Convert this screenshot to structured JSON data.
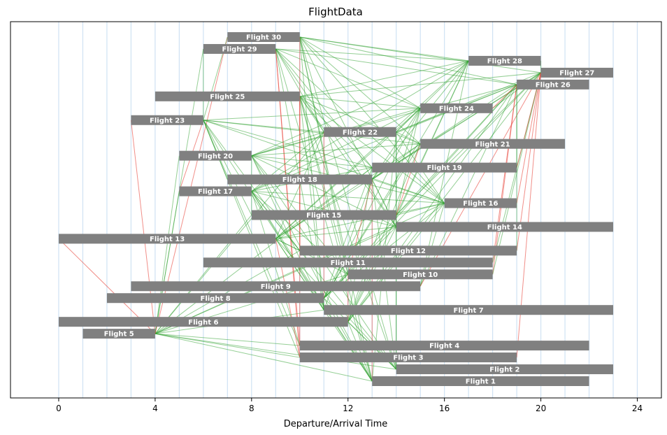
{
  "chart_data": {
    "type": "gantt-network",
    "title": "FlightData",
    "xlabel": "Departure/Arrival Time",
    "xlim": [
      -2,
      25
    ],
    "xticks": [
      0,
      4,
      8,
      12,
      16,
      20,
      24
    ],
    "vertical_gridlines": [
      0,
      1,
      2,
      3,
      4,
      5,
      6,
      7,
      8,
      9,
      10,
      11,
      12,
      13,
      14,
      15,
      16,
      17,
      18,
      19,
      20,
      21,
      22,
      23,
      24
    ],
    "colors": {
      "bar": "#808080",
      "grid": "#cfe2f3",
      "connection_ok": "#2ca02c",
      "connection_bad": "#e8443a"
    },
    "flights": [
      {
        "id": 1,
        "label": "Flight 1",
        "dep": 13,
        "arr": 22
      },
      {
        "id": 2,
        "label": "Flight 2",
        "dep": 14,
        "arr": 23
      },
      {
        "id": 3,
        "label": "Flight 3",
        "dep": 10,
        "arr": 19
      },
      {
        "id": 4,
        "label": "Flight 4",
        "dep": 10,
        "arr": 22
      },
      {
        "id": 5,
        "label": "Flight 5",
        "dep": 1,
        "arr": 4
      },
      {
        "id": 6,
        "label": "Flight 6",
        "dep": 0,
        "arr": 12
      },
      {
        "id": 7,
        "label": "Flight 7",
        "dep": 11,
        "arr": 23
      },
      {
        "id": 8,
        "label": "Flight 8",
        "dep": 2,
        "arr": 11
      },
      {
        "id": 9,
        "label": "Flight 9",
        "dep": 3,
        "arr": 15
      },
      {
        "id": 10,
        "label": "Flight 10",
        "dep": 12,
        "arr": 18
      },
      {
        "id": 11,
        "label": "Flight 11",
        "dep": 6,
        "arr": 18
      },
      {
        "id": 12,
        "label": "Flight 12",
        "dep": 10,
        "arr": 19
      },
      {
        "id": 13,
        "label": "Flight 13",
        "dep": 0,
        "arr": 9
      },
      {
        "id": 14,
        "label": "Flight 14",
        "dep": 14,
        "arr": 23
      },
      {
        "id": 15,
        "label": "Flight 15",
        "dep": 8,
        "arr": 14
      },
      {
        "id": 16,
        "label": "Flight 16",
        "dep": 16,
        "arr": 19
      },
      {
        "id": 17,
        "label": "Flight 17",
        "dep": 5,
        "arr": 8
      },
      {
        "id": 18,
        "label": "Flight 18",
        "dep": 7,
        "arr": 13
      },
      {
        "id": 19,
        "label": "Flight 19",
        "dep": 13,
        "arr": 19
      },
      {
        "id": 20,
        "label": "Flight 20",
        "dep": 5,
        "arr": 8
      },
      {
        "id": 21,
        "label": "Flight 21",
        "dep": 15,
        "arr": 21
      },
      {
        "id": 22,
        "label": "Flight 22",
        "dep": 11,
        "arr": 14
      },
      {
        "id": 23,
        "label": "Flight 23",
        "dep": 3,
        "arr": 6
      },
      {
        "id": 24,
        "label": "Flight 24",
        "dep": 15,
        "arr": 18
      },
      {
        "id": 25,
        "label": "Flight 25",
        "dep": 4,
        "arr": 10
      },
      {
        "id": 26,
        "label": "Flight 26",
        "dep": 19,
        "arr": 22
      },
      {
        "id": 27,
        "label": "Flight 27",
        "dep": 20,
        "arr": 23
      },
      {
        "id": 28,
        "label": "Flight 28",
        "dep": 17,
        "arr": 20
      },
      {
        "id": 29,
        "label": "Flight 29",
        "dep": 6,
        "arr": 9
      },
      {
        "id": 30,
        "label": "Flight 30",
        "dep": 7,
        "arr": 10
      }
    ],
    "connections": [
      {
        "from": 5,
        "to": 1,
        "ok": true
      },
      {
        "from": 5,
        "to": 2,
        "ok": true
      },
      {
        "from": 5,
        "to": 3,
        "ok": true
      },
      {
        "from": 5,
        "to": 4,
        "ok": true
      },
      {
        "from": 5,
        "to": 7,
        "ok": true
      },
      {
        "from": 5,
        "to": 10,
        "ok": true
      },
      {
        "from": 5,
        "to": 12,
        "ok": true
      },
      {
        "from": 5,
        "to": 14,
        "ok": true
      },
      {
        "from": 5,
        "to": 15,
        "ok": true
      },
      {
        "from": 5,
        "to": 16,
        "ok": true
      },
      {
        "from": 5,
        "to": 17,
        "ok": true
      },
      {
        "from": 5,
        "to": 19,
        "ok": true
      },
      {
        "from": 5,
        "to": 20,
        "ok": true
      },
      {
        "from": 5,
        "to": 22,
        "ok": true
      },
      {
        "from": 5,
        "to": 29,
        "ok": true
      },
      {
        "from": 5,
        "to": 23,
        "ok": false
      },
      {
        "from": 5,
        "to": 30,
        "ok": false
      },
      {
        "from": 5,
        "to": 13,
        "ok": false
      },
      {
        "from": 23,
        "to": 17,
        "ok": false
      },
      {
        "from": 23,
        "to": 29,
        "ok": true
      },
      {
        "from": 23,
        "to": 30,
        "ok": true
      },
      {
        "from": 23,
        "to": 18,
        "ok": true
      },
      {
        "from": 23,
        "to": 15,
        "ok": true
      },
      {
        "from": 23,
        "to": 22,
        "ok": true
      },
      {
        "from": 23,
        "to": 24,
        "ok": true
      },
      {
        "from": 23,
        "to": 21,
        "ok": true
      },
      {
        "from": 23,
        "to": 19,
        "ok": true
      },
      {
        "from": 23,
        "to": 16,
        "ok": true
      },
      {
        "from": 23,
        "to": 12,
        "ok": true
      },
      {
        "from": 23,
        "to": 4,
        "ok": true
      },
      {
        "from": 23,
        "to": 3,
        "ok": true
      },
      {
        "from": 23,
        "to": 1,
        "ok": true
      },
      {
        "from": 29,
        "to": 3,
        "ok": false
      },
      {
        "from": 29,
        "to": 4,
        "ok": false
      },
      {
        "from": 29,
        "to": 28,
        "ok": true
      },
      {
        "from": 29,
        "to": 26,
        "ok": true
      },
      {
        "from": 29,
        "to": 24,
        "ok": true
      },
      {
        "from": 29,
        "to": 19,
        "ok": true
      },
      {
        "from": 29,
        "to": 16,
        "ok": true
      },
      {
        "from": 29,
        "to": 14,
        "ok": true
      },
      {
        "from": 29,
        "to": 1,
        "ok": true
      },
      {
        "from": 29,
        "to": 22,
        "ok": true
      },
      {
        "from": 29,
        "to": 7,
        "ok": true
      },
      {
        "from": 30,
        "to": 28,
        "ok": true
      },
      {
        "from": 30,
        "to": 27,
        "ok": true
      },
      {
        "from": 30,
        "to": 26,
        "ok": true
      },
      {
        "from": 30,
        "to": 24,
        "ok": true
      },
      {
        "from": 30,
        "to": 21,
        "ok": true
      },
      {
        "from": 30,
        "to": 16,
        "ok": true
      },
      {
        "from": 30,
        "to": 14,
        "ok": true
      },
      {
        "from": 30,
        "to": 10,
        "ok": true
      },
      {
        "from": 30,
        "to": 7,
        "ok": true
      },
      {
        "from": 30,
        "to": 2,
        "ok": true
      },
      {
        "from": 30,
        "to": 1,
        "ok": true
      },
      {
        "from": 30,
        "to": 12,
        "ok": false
      },
      {
        "from": 25,
        "to": 28,
        "ok": true
      },
      {
        "from": 25,
        "to": 27,
        "ok": true
      },
      {
        "from": 25,
        "to": 24,
        "ok": true
      },
      {
        "from": 25,
        "to": 22,
        "ok": true
      },
      {
        "from": 25,
        "to": 21,
        "ok": true
      },
      {
        "from": 25,
        "to": 19,
        "ok": true
      },
      {
        "from": 25,
        "to": 16,
        "ok": true
      },
      {
        "from": 25,
        "to": 14,
        "ok": true
      },
      {
        "from": 25,
        "to": 10,
        "ok": true
      },
      {
        "from": 25,
        "to": 7,
        "ok": true
      },
      {
        "from": 25,
        "to": 2,
        "ok": true
      },
      {
        "from": 25,
        "to": 1,
        "ok": true
      },
      {
        "from": 25,
        "to": 12,
        "ok": false
      },
      {
        "from": 25,
        "to": 4,
        "ok": false
      },
      {
        "from": 20,
        "to": 28,
        "ok": true
      },
      {
        "from": 20,
        "to": 26,
        "ok": true
      },
      {
        "from": 20,
        "to": 24,
        "ok": true
      },
      {
        "from": 20,
        "to": 22,
        "ok": true
      },
      {
        "from": 20,
        "to": 21,
        "ok": true
      },
      {
        "from": 20,
        "to": 19,
        "ok": true
      },
      {
        "from": 20,
        "to": 16,
        "ok": true
      },
      {
        "from": 20,
        "to": 14,
        "ok": true
      },
      {
        "from": 20,
        "to": 10,
        "ok": true
      },
      {
        "from": 20,
        "to": 7,
        "ok": true
      },
      {
        "from": 20,
        "to": 2,
        "ok": true
      },
      {
        "from": 20,
        "to": 1,
        "ok": true
      },
      {
        "from": 20,
        "to": 15,
        "ok": true
      },
      {
        "from": 17,
        "to": 28,
        "ok": true
      },
      {
        "from": 17,
        "to": 26,
        "ok": true
      },
      {
        "from": 17,
        "to": 24,
        "ok": true
      },
      {
        "from": 17,
        "to": 22,
        "ok": true
      },
      {
        "from": 17,
        "to": 19,
        "ok": true
      },
      {
        "from": 17,
        "to": 16,
        "ok": true
      },
      {
        "from": 17,
        "to": 14,
        "ok": true
      },
      {
        "from": 17,
        "to": 12,
        "ok": true
      },
      {
        "from": 17,
        "to": 10,
        "ok": true
      },
      {
        "from": 17,
        "to": 7,
        "ok": true
      },
      {
        "from": 17,
        "to": 2,
        "ok": true
      },
      {
        "from": 17,
        "to": 1,
        "ok": true
      },
      {
        "from": 17,
        "to": 4,
        "ok": true
      },
      {
        "from": 13,
        "to": 28,
        "ok": true
      },
      {
        "from": 13,
        "to": 27,
        "ok": true
      },
      {
        "from": 13,
        "to": 24,
        "ok": true
      },
      {
        "from": 13,
        "to": 22,
        "ok": true
      },
      {
        "from": 13,
        "to": 21,
        "ok": true
      },
      {
        "from": 13,
        "to": 19,
        "ok": true
      },
      {
        "from": 13,
        "to": 16,
        "ok": true
      },
      {
        "from": 13,
        "to": 14,
        "ok": true
      },
      {
        "from": 13,
        "to": 10,
        "ok": true
      },
      {
        "from": 13,
        "to": 7,
        "ok": true
      },
      {
        "from": 13,
        "to": 2,
        "ok": true
      },
      {
        "from": 13,
        "to": 1,
        "ok": true
      },
      {
        "from": 13,
        "to": 12,
        "ok": true
      },
      {
        "from": 13,
        "to": 3,
        "ok": false
      },
      {
        "from": 18,
        "to": 28,
        "ok": true
      },
      {
        "from": 18,
        "to": 27,
        "ok": true
      },
      {
        "from": 18,
        "to": 26,
        "ok": true
      },
      {
        "from": 18,
        "to": 24,
        "ok": true
      },
      {
        "from": 18,
        "to": 21,
        "ok": true
      },
      {
        "from": 18,
        "to": 16,
        "ok": true
      },
      {
        "from": 18,
        "to": 14,
        "ok": true
      },
      {
        "from": 18,
        "to": 2,
        "ok": true
      },
      {
        "from": 18,
        "to": 1,
        "ok": false
      },
      {
        "from": 18,
        "to": 10,
        "ok": false
      },
      {
        "from": 18,
        "to": 7,
        "ok": true
      },
      {
        "from": 22,
        "to": 28,
        "ok": true
      },
      {
        "from": 22,
        "to": 27,
        "ok": true
      },
      {
        "from": 22,
        "to": 24,
        "ok": true
      },
      {
        "from": 22,
        "to": 16,
        "ok": true
      },
      {
        "from": 22,
        "to": 2,
        "ok": true
      },
      {
        "from": 22,
        "to": 1,
        "ok": true
      },
      {
        "from": 22,
        "to": 14,
        "ok": true
      },
      {
        "from": 22,
        "to": 21,
        "ok": true
      },
      {
        "from": 15,
        "to": 28,
        "ok": true
      },
      {
        "from": 15,
        "to": 27,
        "ok": true
      },
      {
        "from": 15,
        "to": 26,
        "ok": true
      },
      {
        "from": 15,
        "to": 16,
        "ok": true
      },
      {
        "from": 15,
        "to": 2,
        "ok": true
      },
      {
        "from": 15,
        "to": 24,
        "ok": true
      },
      {
        "from": 15,
        "to": 21,
        "ok": false
      },
      {
        "from": 8,
        "to": 28,
        "ok": true
      },
      {
        "from": 8,
        "to": 27,
        "ok": true
      },
      {
        "from": 8,
        "to": 26,
        "ok": true
      },
      {
        "from": 8,
        "to": 24,
        "ok": true
      },
      {
        "from": 8,
        "to": 21,
        "ok": true
      },
      {
        "from": 8,
        "to": 19,
        "ok": true
      },
      {
        "from": 8,
        "to": 16,
        "ok": true
      },
      {
        "from": 8,
        "to": 14,
        "ok": true
      },
      {
        "from": 8,
        "to": 10,
        "ok": true
      },
      {
        "from": 8,
        "to": 2,
        "ok": true
      },
      {
        "from": 8,
        "to": 1,
        "ok": true
      },
      {
        "from": 8,
        "to": 22,
        "ok": false
      },
      {
        "from": 8,
        "to": 7,
        "ok": true
      },
      {
        "from": 6,
        "to": 28,
        "ok": true
      },
      {
        "from": 6,
        "to": 27,
        "ok": true
      },
      {
        "from": 6,
        "to": 26,
        "ok": true
      },
      {
        "from": 6,
        "to": 24,
        "ok": true
      },
      {
        "from": 6,
        "to": 21,
        "ok": true
      },
      {
        "from": 6,
        "to": 19,
        "ok": true
      },
      {
        "from": 6,
        "to": 16,
        "ok": true
      },
      {
        "from": 6,
        "to": 14,
        "ok": true
      },
      {
        "from": 6,
        "to": 1,
        "ok": true
      },
      {
        "from": 6,
        "to": 2,
        "ok": true
      },
      {
        "from": 6,
        "to": 10,
        "ok": false
      },
      {
        "from": 9,
        "to": 28,
        "ok": true
      },
      {
        "from": 9,
        "to": 26,
        "ok": true
      },
      {
        "from": 9,
        "to": 16,
        "ok": true
      },
      {
        "from": 9,
        "to": 27,
        "ok": false
      },
      {
        "from": 11,
        "to": 26,
        "ok": false
      },
      {
        "from": 11,
        "to": 27,
        "ok": true
      },
      {
        "from": 10,
        "to": 26,
        "ok": false
      },
      {
        "from": 10,
        "to": 27,
        "ok": true
      },
      {
        "from": 12,
        "to": 27,
        "ok": false
      },
      {
        "from": 3,
        "to": 27,
        "ok": false
      },
      {
        "from": 24,
        "to": 27,
        "ok": true
      },
      {
        "from": 24,
        "to": 26,
        "ok": false
      },
      {
        "from": 19,
        "to": 27,
        "ok": false
      },
      {
        "from": 16,
        "to": 27,
        "ok": false
      },
      {
        "from": 28,
        "to": 27,
        "ok": true
      },
      {
        "from": 22,
        "to": 26,
        "ok": true
      },
      {
        "from": 12,
        "to": 26,
        "ok": true
      },
      {
        "from": 19,
        "to": 26,
        "ok": true
      }
    ]
  }
}
